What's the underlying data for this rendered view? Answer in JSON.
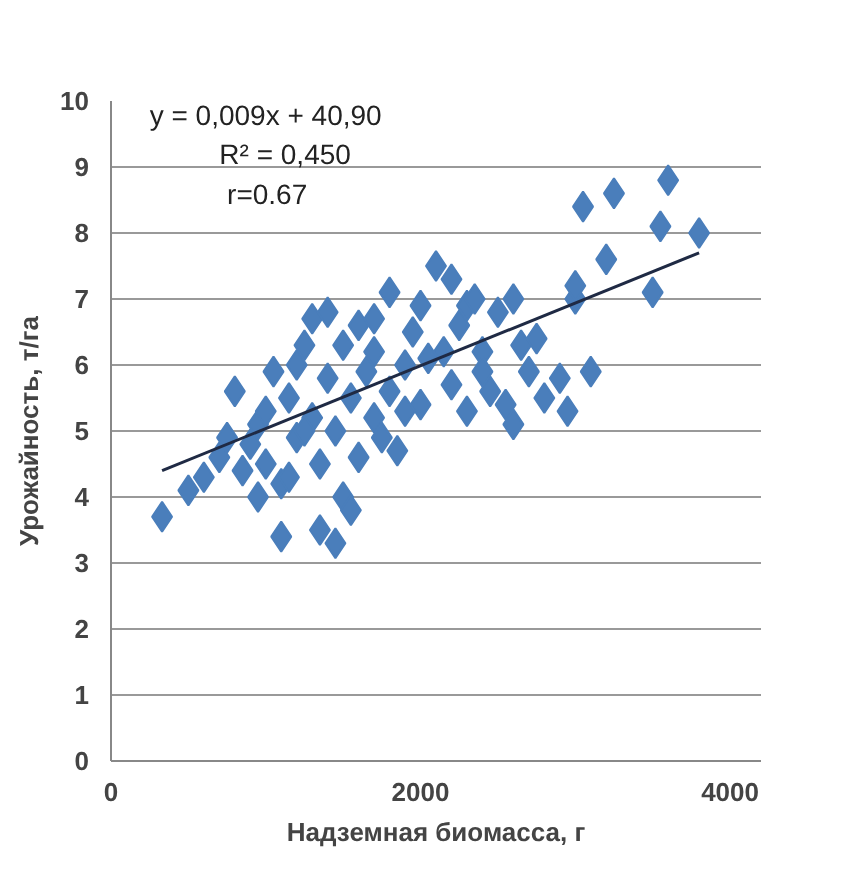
{
  "chart_data": {
    "type": "scatter",
    "xlabel": "Надземная биомасса, г",
    "ylabel": "Урожайность, т/га",
    "annotations": [
      "y = 0,009x + 40,90",
      "R² = 0,450",
      "r=0.67"
    ],
    "xlim": [
      0,
      4200
    ],
    "xticks": [
      0,
      2000,
      4000
    ],
    "ylim": [
      0,
      10
    ],
    "yticks": [
      0,
      1,
      2,
      3,
      4,
      5,
      6,
      7,
      8,
      9,
      10
    ],
    "grid": "y",
    "marker": "diamond",
    "series": [
      {
        "color": "#4a7ebb",
        "x": [
          330,
          500,
          600,
          700,
          750,
          800,
          850,
          900,
          950,
          1000,
          1000,
          1050,
          1100,
          1100,
          1150,
          1200,
          1200,
          1250,
          1300,
          1300,
          1350,
          1350,
          1400,
          1400,
          1450,
          1450,
          1500,
          1500,
          1550,
          1550,
          1600,
          1600,
          1650,
          1700,
          1700,
          1750,
          1800,
          1800,
          1850,
          1900,
          1950,
          2000,
          2000,
          2100,
          2150,
          2200,
          2200,
          2250,
          2300,
          2300,
          2350,
          2400,
          2450,
          2500,
          2550,
          2600,
          2600,
          2650,
          2700,
          2750,
          2800,
          2900,
          2950,
          3000,
          3050,
          3100,
          3200,
          3250,
          3500,
          3550,
          3600,
          3800,
          1250,
          1150,
          950,
          2050,
          1700,
          2400,
          3000,
          1900
        ],
        "values": [
          3.7,
          4.1,
          4.3,
          4.6,
          4.9,
          5.6,
          4.4,
          4.8,
          5.1,
          5.3,
          4.5,
          5.9,
          3.4,
          4.2,
          5.5,
          6.0,
          4.9,
          6.3,
          5.2,
          6.7,
          3.5,
          4.5,
          5.8,
          6.8,
          3.3,
          5.0,
          4.0,
          6.3,
          3.8,
          5.5,
          6.6,
          4.6,
          5.9,
          6.2,
          5.2,
          4.9,
          7.1,
          5.6,
          4.7,
          6.0,
          6.5,
          6.9,
          5.4,
          7.5,
          6.2,
          5.7,
          7.3,
          6.6,
          5.3,
          6.9,
          7.0,
          6.2,
          5.6,
          6.8,
          5.4,
          5.1,
          7.0,
          6.3,
          5.9,
          6.4,
          5.5,
          5.8,
          5.3,
          7.0,
          8.4,
          5.9,
          7.6,
          8.6,
          7.1,
          8.1,
          8.8,
          8.0,
          5.0,
          4.3,
          4.0,
          6.1,
          6.7,
          5.9,
          7.2,
          5.3
        ]
      },
      {
        "type": "line",
        "marker": "none",
        "color": "#1f2a44",
        "x": [
          330,
          3800
        ],
        "values": [
          4.4,
          7.7
        ]
      }
    ]
  }
}
